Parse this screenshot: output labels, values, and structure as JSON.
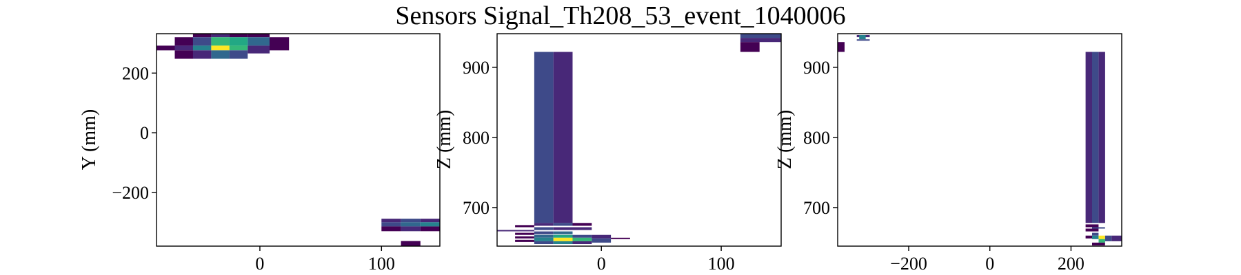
{
  "figure": {
    "title": "Sensors Signal_Th208_53_event_1040006"
  },
  "chart_data": [
    {
      "type": "heatmap",
      "xlabel": "",
      "ylabel": "Y (mm)",
      "xlim": [
        -85,
        148
      ],
      "ylim": [
        -380,
        332
      ],
      "xticks": [
        {
          "v": 0,
          "label": "0"
        },
        {
          "v": 100,
          "label": "100"
        }
      ],
      "yticks": [
        {
          "v": 200,
          "label": "200"
        },
        {
          "v": 0,
          "label": "0"
        },
        {
          "v": -200,
          "label": "−200"
        }
      ],
      "cells": [
        {
          "x0": -85,
          "x1": -70,
          "y0": 276,
          "y1": 292,
          "c": "#440154"
        },
        {
          "x0": -70,
          "x1": -55,
          "y0": 292,
          "y1": 320,
          "c": "#440154"
        },
        {
          "x0": -70,
          "x1": -55,
          "y0": 276,
          "y1": 292,
          "c": "#482878"
        },
        {
          "x0": -70,
          "x1": -55,
          "y0": 248,
          "y1": 276,
          "c": "#440154"
        },
        {
          "x0": -55,
          "x1": -40,
          "y0": 320,
          "y1": 332,
          "c": "#440154"
        },
        {
          "x0": -55,
          "x1": -40,
          "y0": 292,
          "y1": 320,
          "c": "#3e4a89"
        },
        {
          "x0": -55,
          "x1": -40,
          "y0": 276,
          "y1": 292,
          "c": "#26828e"
        },
        {
          "x0": -55,
          "x1": -40,
          "y0": 248,
          "y1": 276,
          "c": "#482878"
        },
        {
          "x0": -40,
          "x1": -25,
          "y0": 320,
          "y1": 332,
          "c": "#482878"
        },
        {
          "x0": -40,
          "x1": -25,
          "y0": 292,
          "y1": 320,
          "c": "#35b779"
        },
        {
          "x0": -40,
          "x1": -25,
          "y0": 276,
          "y1": 292,
          "c": "#fde725"
        },
        {
          "x0": -40,
          "x1": -25,
          "y0": 248,
          "y1": 276,
          "c": "#31688e"
        },
        {
          "x0": -25,
          "x1": -10,
          "y0": 320,
          "y1": 332,
          "c": "#440154"
        },
        {
          "x0": -25,
          "x1": -10,
          "y0": 292,
          "y1": 320,
          "c": "#22a884"
        },
        {
          "x0": -25,
          "x1": -10,
          "y0": 276,
          "y1": 292,
          "c": "#35b779"
        },
        {
          "x0": -25,
          "x1": -10,
          "y0": 248,
          "y1": 276,
          "c": "#3e4a89"
        },
        {
          "x0": -10,
          "x1": 8,
          "y0": 320,
          "y1": 332,
          "c": "#440154"
        },
        {
          "x0": -10,
          "x1": 8,
          "y0": 292,
          "y1": 320,
          "c": "#31688e"
        },
        {
          "x0": -10,
          "x1": 8,
          "y0": 266,
          "y1": 292,
          "c": "#482878"
        },
        {
          "x0": 8,
          "x1": 24,
          "y0": 276,
          "y1": 320,
          "c": "#440154"
        },
        {
          "x0": 100,
          "x1": 116,
          "y0": -300,
          "y1": -288,
          "c": "#482878"
        },
        {
          "x0": 100,
          "x1": 116,
          "y0": -314,
          "y1": -300,
          "c": "#3e4a89"
        },
        {
          "x0": 100,
          "x1": 116,
          "y0": -330,
          "y1": -314,
          "c": "#440154"
        },
        {
          "x0": 116,
          "x1": 132,
          "y0": -300,
          "y1": -288,
          "c": "#3e4a89"
        },
        {
          "x0": 116,
          "x1": 132,
          "y0": -314,
          "y1": -300,
          "c": "#31688e"
        },
        {
          "x0": 116,
          "x1": 132,
          "y0": -330,
          "y1": -314,
          "c": "#482878"
        },
        {
          "x0": 132,
          "x1": 148,
          "y0": -300,
          "y1": -288,
          "c": "#482878"
        },
        {
          "x0": 132,
          "x1": 148,
          "y0": -314,
          "y1": -300,
          "c": "#26828e"
        },
        {
          "x0": 132,
          "x1": 148,
          "y0": -330,
          "y1": -314,
          "c": "#440154"
        },
        {
          "x0": 116,
          "x1": 132,
          "y0": -380,
          "y1": -363,
          "c": "#440154"
        }
      ]
    },
    {
      "type": "heatmap",
      "xlabel": "",
      "ylabel": "Z (mm)",
      "xlim": [
        -87,
        150
      ],
      "ylim": [
        645,
        948
      ],
      "xticks": [
        {
          "v": 0,
          "label": "0"
        },
        {
          "v": 100,
          "label": "100"
        }
      ],
      "yticks": [
        {
          "v": 900,
          "label": "900"
        },
        {
          "v": 800,
          "label": "800"
        },
        {
          "v": 700,
          "label": "700"
        }
      ],
      "cells": [
        {
          "x0": -56,
          "x1": -40,
          "y0": 678,
          "y1": 922,
          "c": "#3e4a89"
        },
        {
          "x0": -40,
          "x1": -24,
          "y0": 678,
          "y1": 922,
          "c": "#482878"
        },
        {
          "x0": -87,
          "x1": -56,
          "y0": 666,
          "y1": 668,
          "c": "#482878"
        },
        {
          "x0": -72,
          "x1": -56,
          "y0": 672,
          "y1": 675,
          "c": "#440154"
        },
        {
          "x0": -72,
          "x1": -56,
          "y0": 661,
          "y1": 664,
          "c": "#440154"
        },
        {
          "x0": -72,
          "x1": -56,
          "y0": 656,
          "y1": 659,
          "c": "#440154"
        },
        {
          "x0": -72,
          "x1": -56,
          "y0": 651,
          "y1": 654,
          "c": "#440154"
        },
        {
          "x0": -56,
          "x1": -40,
          "y0": 674,
          "y1": 678,
          "c": "#482878"
        },
        {
          "x0": -56,
          "x1": -40,
          "y0": 668,
          "y1": 672,
          "c": "#3e4a89"
        },
        {
          "x0": -56,
          "x1": -40,
          "y0": 662,
          "y1": 666,
          "c": "#3e4a89"
        },
        {
          "x0": -56,
          "x1": -40,
          "y0": 657,
          "y1": 661,
          "c": "#31688e"
        },
        {
          "x0": -56,
          "x1": -40,
          "y0": 652,
          "y1": 657,
          "c": "#26828e"
        },
        {
          "x0": -56,
          "x1": -40,
          "y0": 648,
          "y1": 652,
          "c": "#3e4a89"
        },
        {
          "x0": -40,
          "x1": -24,
          "y0": 674,
          "y1": 678,
          "c": "#3e4a89"
        },
        {
          "x0": -40,
          "x1": -24,
          "y0": 668,
          "y1": 672,
          "c": "#482878"
        },
        {
          "x0": -40,
          "x1": -24,
          "y0": 662,
          "y1": 666,
          "c": "#31688e"
        },
        {
          "x0": -40,
          "x1": -24,
          "y0": 657,
          "y1": 661,
          "c": "#22a884"
        },
        {
          "x0": -40,
          "x1": -24,
          "y0": 652,
          "y1": 657,
          "c": "#fde725"
        },
        {
          "x0": -40,
          "x1": -24,
          "y0": 648,
          "y1": 652,
          "c": "#26828e"
        },
        {
          "x0": -24,
          "x1": -8,
          "y0": 674,
          "y1": 678,
          "c": "#440154"
        },
        {
          "x0": -24,
          "x1": -8,
          "y0": 668,
          "y1": 672,
          "c": "#482878"
        },
        {
          "x0": -24,
          "x1": -8,
          "y0": 657,
          "y1": 661,
          "c": "#3e4a89"
        },
        {
          "x0": -24,
          "x1": -8,
          "y0": 652,
          "y1": 657,
          "c": "#35b779"
        },
        {
          "x0": -24,
          "x1": -8,
          "y0": 648,
          "y1": 652,
          "c": "#482878"
        },
        {
          "x0": -8,
          "x1": 8,
          "y0": 656,
          "y1": 661,
          "c": "#482878"
        },
        {
          "x0": -8,
          "x1": 8,
          "y0": 650,
          "y1": 656,
          "c": "#3e4a89"
        },
        {
          "x0": 8,
          "x1": 24,
          "y0": 655,
          "y1": 657,
          "c": "#440154"
        },
        {
          "x0": 116,
          "x1": 150,
          "y0": 942,
          "y1": 948,
          "c": "#3e4a89"
        },
        {
          "x0": 116,
          "x1": 150,
          "y0": 936,
          "y1": 942,
          "c": "#482878"
        },
        {
          "x0": 116,
          "x1": 132,
          "y0": 922,
          "y1": 936,
          "c": "#440154"
        }
      ]
    },
    {
      "type": "heatmap",
      "xlabel": "",
      "ylabel": "Z (mm)",
      "xlim": [
        -375,
        325
      ],
      "ylim": [
        645,
        948
      ],
      "xticks": [
        {
          "v": -200,
          "label": "−200"
        },
        {
          "v": 0,
          "label": "0"
        },
        {
          "v": 200,
          "label": "200"
        }
      ],
      "yticks": [
        {
          "v": 900,
          "label": "900"
        },
        {
          "v": 800,
          "label": "800"
        },
        {
          "v": 700,
          "label": "700"
        }
      ],
      "cells": [
        {
          "x0": -375,
          "x1": -358,
          "y0": 922,
          "y1": 936,
          "c": "#440154"
        },
        {
          "x0": -328,
          "x1": -296,
          "y0": 943,
          "y1": 946,
          "c": "#482878"
        },
        {
          "x0": -322,
          "x1": -306,
          "y0": 940,
          "y1": 946,
          "c": "#26828e"
        },
        {
          "x0": -328,
          "x1": -296,
          "y0": 938,
          "y1": 940,
          "c": "#3e4a89"
        },
        {
          "x0": 236,
          "x1": 252,
          "y0": 678,
          "y1": 922,
          "c": "#482878"
        },
        {
          "x0": 252,
          "x1": 268,
          "y0": 678,
          "y1": 922,
          "c": "#3e4a89"
        },
        {
          "x0": 268,
          "x1": 284,
          "y0": 678,
          "y1": 922,
          "c": "#482878"
        },
        {
          "x0": 236,
          "x1": 268,
          "y0": 672,
          "y1": 676,
          "c": "#440154"
        },
        {
          "x0": 236,
          "x1": 268,
          "y0": 666,
          "y1": 670,
          "c": "#440154"
        },
        {
          "x0": 252,
          "x1": 284,
          "y0": 670,
          "y1": 672,
          "c": "#3e4a89"
        },
        {
          "x0": 236,
          "x1": 252,
          "y0": 656,
          "y1": 660,
          "c": "#440154"
        },
        {
          "x0": 252,
          "x1": 268,
          "y0": 660,
          "y1": 664,
          "c": "#3e4a89"
        },
        {
          "x0": 252,
          "x1": 268,
          "y0": 655,
          "y1": 660,
          "c": "#26828e"
        },
        {
          "x0": 268,
          "x1": 284,
          "y0": 655,
          "y1": 660,
          "c": "#fde725"
        },
        {
          "x0": 268,
          "x1": 284,
          "y0": 650,
          "y1": 655,
          "c": "#35b779"
        },
        {
          "x0": 284,
          "x1": 300,
          "y0": 652,
          "y1": 660,
          "c": "#3e4a89"
        },
        {
          "x0": 300,
          "x1": 325,
          "y0": 652,
          "y1": 660,
          "c": "#482878"
        },
        {
          "x0": 252,
          "x1": 284,
          "y0": 646,
          "y1": 650,
          "c": "#440154"
        }
      ]
    }
  ]
}
